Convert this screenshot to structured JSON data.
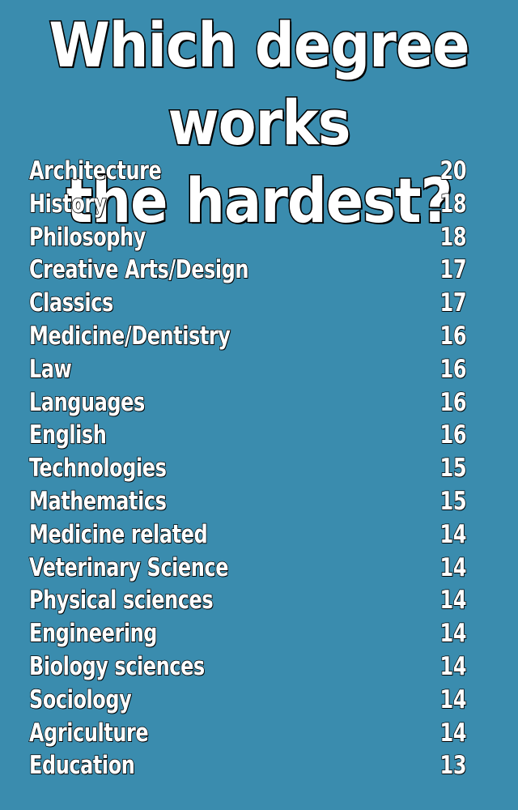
{
  "title": {
    "line1": "Which degree works",
    "line2": "the hardest?"
  },
  "rankings": [
    {
      "label": "Architecture",
      "value": "20"
    },
    {
      "label": "History",
      "value": "18"
    },
    {
      "label": "Philosophy",
      "value": "18"
    },
    {
      "label": "Creative Arts/Design",
      "value": "17"
    },
    {
      "label": "Classics",
      "value": "17"
    },
    {
      "label": "Medicine/Dentistry",
      "value": "16"
    },
    {
      "label": "Law",
      "value": "16"
    },
    {
      "label": "Languages",
      "value": "16"
    },
    {
      "label": "English",
      "value": "16"
    },
    {
      "label": "Technologies",
      "value": "15"
    },
    {
      "label": "Mathematics",
      "value": "15"
    },
    {
      "label": "Medicine related",
      "value": "14"
    },
    {
      "label": "Veterinary Science",
      "value": "14"
    },
    {
      "label": "Physical sciences",
      "value": "14"
    },
    {
      "label": "Engineering",
      "value": "14"
    },
    {
      "label": "Biology sciences",
      "value": "14"
    },
    {
      "label": "Sociology",
      "value": "14"
    },
    {
      "label": "Agriculture",
      "value": "14"
    },
    {
      "label": "Education",
      "value": "13"
    }
  ],
  "colors": {
    "background": "#3a8cae",
    "text": "#ffffff",
    "outline": "#000000"
  }
}
